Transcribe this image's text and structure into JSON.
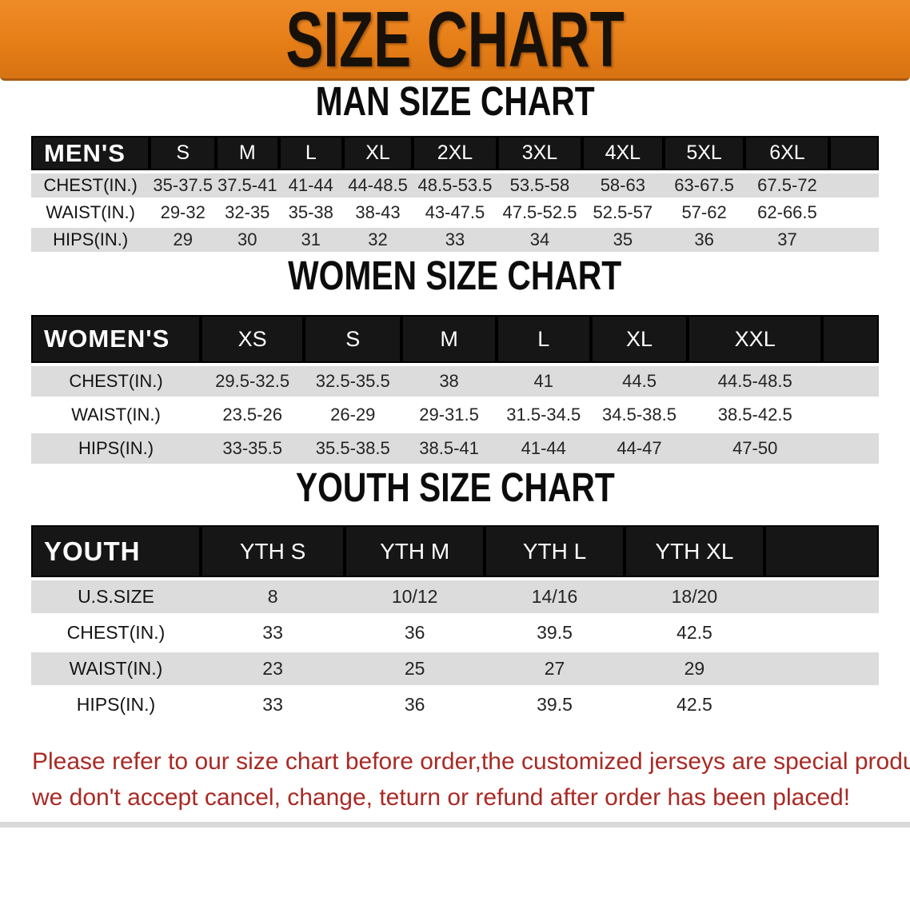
{
  "banner": {
    "title": "SIZE CHART"
  },
  "sections": [
    {
      "id": "men",
      "heading": "MAN SIZE CHART",
      "header_label": "MEN'S",
      "columns": [
        "S",
        "M",
        "L",
        "XL",
        "2XL",
        "3XL",
        "4XL",
        "5XL",
        "6XL"
      ],
      "rows": [
        {
          "label": "CHEST(IN.)",
          "values": [
            "35-37.5",
            "37.5-41",
            "41-44",
            "44-48.5",
            "48.5-53.5",
            "53.5-58",
            "58-63",
            "63-67.5",
            "67.5-72"
          ]
        },
        {
          "label": "WAIST(IN.)",
          "values": [
            "29-32",
            "32-35",
            "35-38",
            "38-43",
            "43-47.5",
            "47.5-52.5",
            "52.5-57",
            "57-62",
            "62-66.5"
          ]
        },
        {
          "label": "HIPS(IN.)",
          "values": [
            "29",
            "30",
            "31",
            "32",
            "33",
            "34",
            "35",
            "36",
            "37"
          ]
        }
      ]
    },
    {
      "id": "women",
      "heading": "WOMEN SIZE CHART",
      "header_label": "WOMEN'S",
      "columns": [
        "XS",
        "S",
        "M",
        "L",
        "XL",
        "XXL"
      ],
      "rows": [
        {
          "label": "CHEST(IN.)",
          "values": [
            "29.5-32.5",
            "32.5-35.5",
            "38",
            "41",
            "44.5",
            "44.5-48.5"
          ]
        },
        {
          "label": "WAIST(IN.)",
          "values": [
            "23.5-26",
            "26-29",
            "29-31.5",
            "31.5-34.5",
            "34.5-38.5",
            "38.5-42.5"
          ]
        },
        {
          "label": "HIPS(IN.)",
          "values": [
            "33-35.5",
            "35.5-38.5",
            "38.5-41",
            "41-44",
            "44-47",
            "47-50"
          ]
        }
      ]
    },
    {
      "id": "youth",
      "heading": "YOUTH SIZE CHART",
      "header_label": "YOUTH",
      "columns": [
        "YTH S",
        "YTH M",
        "YTH L",
        "YTH XL"
      ],
      "rows": [
        {
          "label": "U.S.SIZE",
          "values": [
            "8",
            "10/12",
            "14/16",
            "18/20"
          ]
        },
        {
          "label": "CHEST(IN.)",
          "values": [
            "33",
            "36",
            "39.5",
            "42.5"
          ]
        },
        {
          "label": "WAIST(IN.)",
          "values": [
            "23",
            "25",
            "27",
            "29"
          ]
        },
        {
          "label": "HIPS(IN.)",
          "values": [
            "33",
            "36",
            "39.5",
            "42.5"
          ]
        }
      ]
    }
  ],
  "disclaimer": {
    "line1": "Please refer to our size chart before order,the customized jerseys are special products,",
    "line2": "we don't accept cancel, change, teturn or refund after order has been placed!"
  },
  "colors": {
    "banner_orange": "#e67e17",
    "banner_orange_light": "#ef8b28",
    "banner_orange_dark": "#d97413",
    "header_bar_black": "#161616",
    "row_gray": "#dcdcdc",
    "disclaimer_red": "#a92a25"
  }
}
